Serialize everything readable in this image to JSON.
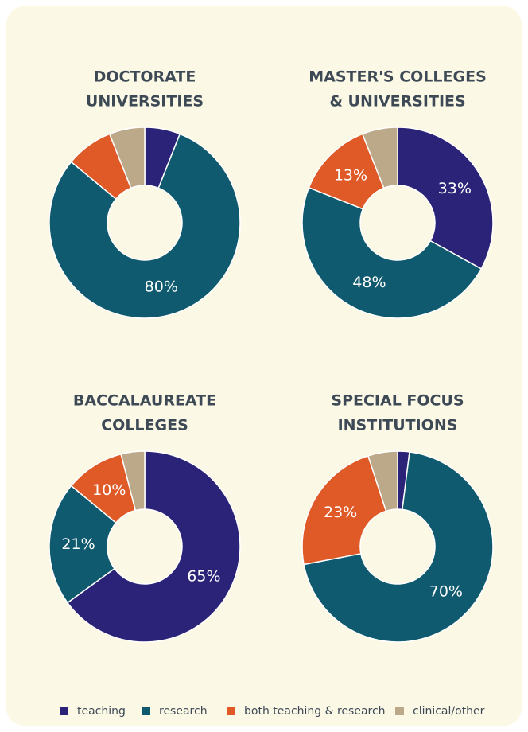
{
  "legend": {
    "categories": [
      "teaching",
      "research",
      "both teaching & research",
      "clinical/other"
    ],
    "colors": [
      "#2a2378",
      "#0f5a6e",
      "#e05a28",
      "#bca98a"
    ]
  },
  "chart_data": [
    {
      "type": "pie",
      "title_lines": [
        "DOCTORATE",
        "UNIVERSITIES"
      ],
      "values": [
        6,
        80,
        8,
        6
      ],
      "value_labels": [
        null,
        "80%",
        null,
        null
      ]
    },
    {
      "type": "pie",
      "title_lines": [
        "MASTER'S COLLEGES",
        "& UNIVERSITIES"
      ],
      "values": [
        33,
        48,
        13,
        6
      ],
      "value_labels": [
        "33%",
        "48%",
        "13%",
        null
      ]
    },
    {
      "type": "pie",
      "title_lines": [
        "BACCALAUREATE",
        "COLLEGES"
      ],
      "values": [
        65,
        21,
        10,
        4
      ],
      "value_labels": [
        "65%",
        "21%",
        "10%",
        null
      ]
    },
    {
      "type": "pie",
      "title_lines": [
        "SPECIAL FOCUS",
        "INSTITUTIONS"
      ],
      "values": [
        2,
        70,
        23,
        5
      ],
      "value_labels": [
        null,
        "70%",
        "23%",
        null
      ]
    }
  ]
}
